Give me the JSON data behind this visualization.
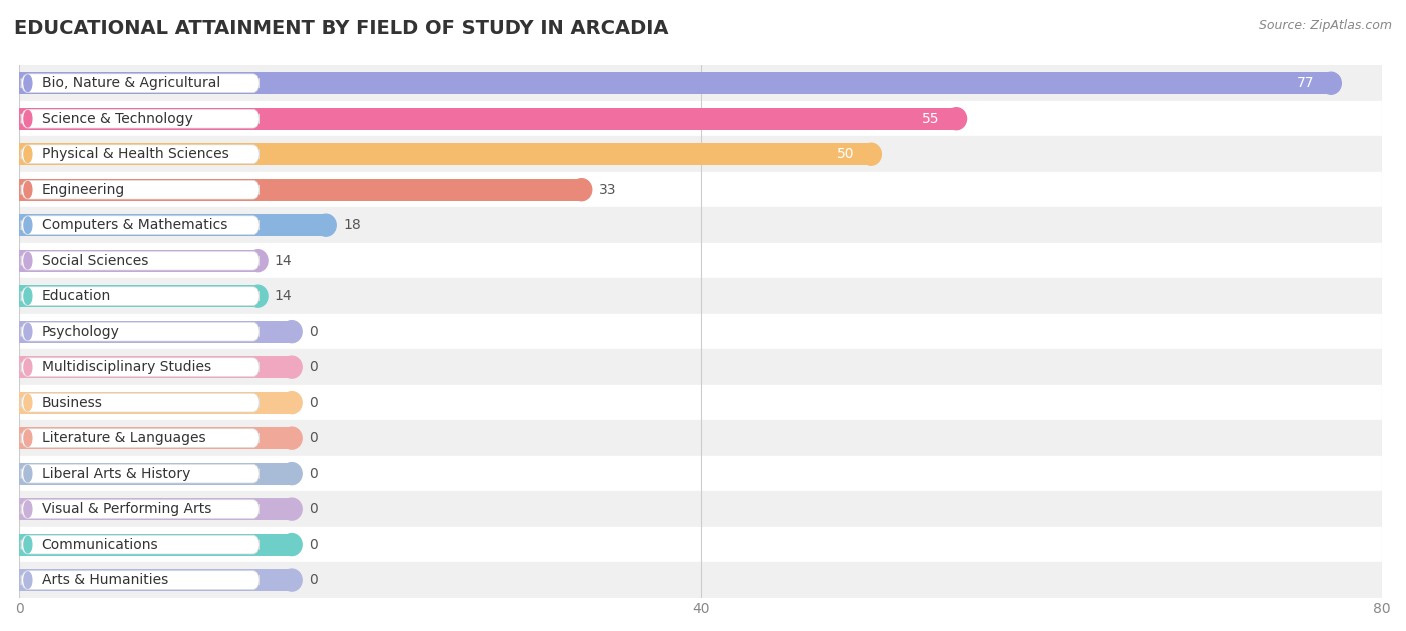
{
  "title": "EDUCATIONAL ATTAINMENT BY FIELD OF STUDY IN ARCADIA",
  "source": "Source: ZipAtlas.com",
  "categories": [
    "Bio, Nature & Agricultural",
    "Science & Technology",
    "Physical & Health Sciences",
    "Engineering",
    "Computers & Mathematics",
    "Social Sciences",
    "Education",
    "Psychology",
    "Multidisciplinary Studies",
    "Business",
    "Literature & Languages",
    "Liberal Arts & History",
    "Visual & Performing Arts",
    "Communications",
    "Arts & Humanities"
  ],
  "values": [
    77,
    55,
    50,
    33,
    18,
    14,
    14,
    0,
    0,
    0,
    0,
    0,
    0,
    0,
    0
  ],
  "bar_colors": [
    "#9b9fde",
    "#f06fa0",
    "#f5bc6e",
    "#e8897a",
    "#8ab4e0",
    "#c4a8d8",
    "#6ecfc8",
    "#b0b0e0",
    "#f0a8c0",
    "#f8c890",
    "#f0a898",
    "#a8bcd8",
    "#c8b0d8",
    "#6ecfc8",
    "#b0b8e0"
  ],
  "xlim": [
    0,
    80
  ],
  "xticks": [
    0,
    40,
    80
  ],
  "row_alt_colors": [
    "#f0f0f0",
    "#ffffff"
  ],
  "title_fontsize": 14,
  "bar_height": 0.62,
  "label_fontsize": 10,
  "value_fontsize": 10,
  "value_white_threshold": 48,
  "min_bar_display": 16
}
